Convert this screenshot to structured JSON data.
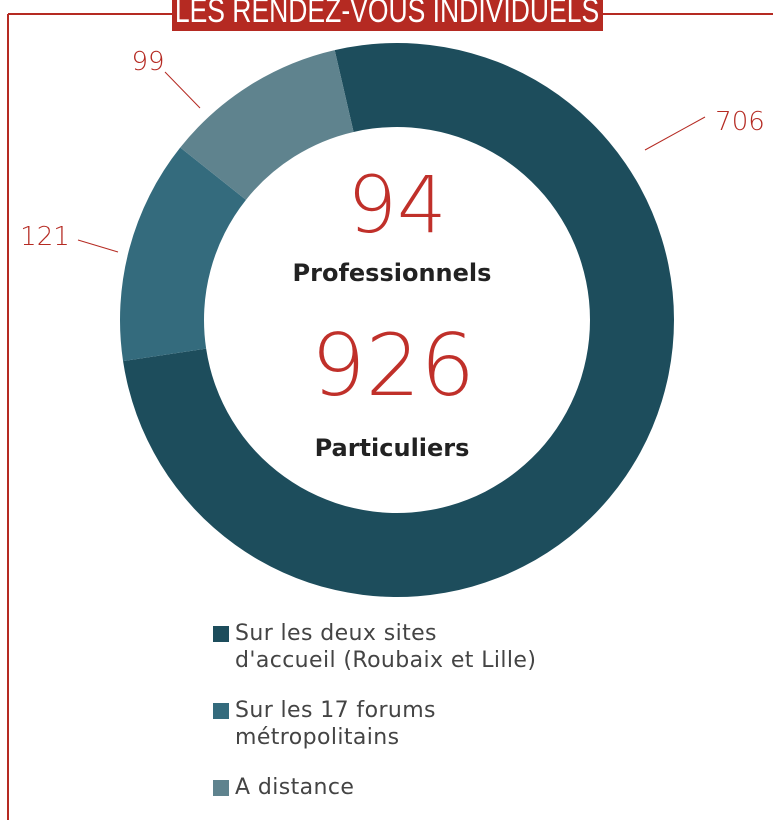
{
  "chart_data": {
    "type": "donut",
    "title": "LES RENDEZ-VOUS INDIVIDUELS",
    "center_texts": [
      "94",
      "Professionnels",
      "926",
      "Particuliers"
    ],
    "series": [
      {
        "name": "Sur les deux sites d'accueil (Roubaix et Lille)",
        "color": "#1d4d5c",
        "values": [
          706
        ]
      },
      {
        "name": "Sur les 17 forums métropolitains",
        "color": "#346b7d",
        "values": [
          121
        ]
      },
      {
        "name": "A distance",
        "color": "#5f838e",
        "values": [
          99
        ]
      }
    ]
  }
}
